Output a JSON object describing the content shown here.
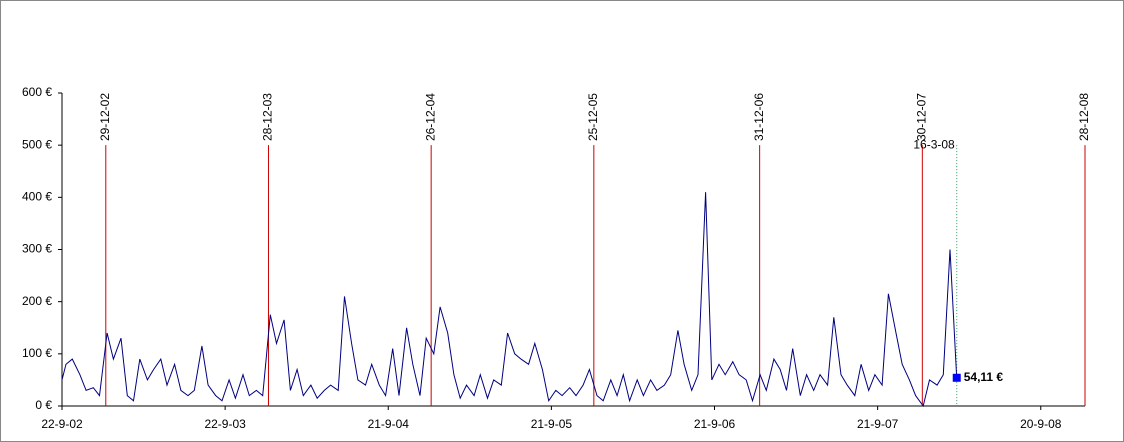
{
  "chart_data": {
    "type": "line",
    "color": "#000080",
    "x": [
      "2002-09-22",
      "2002-10-01",
      "2002-10-15",
      "2002-11-01",
      "2002-11-15",
      "2002-12-01",
      "2002-12-15",
      "2003-01-01",
      "2003-01-15",
      "2003-02-01",
      "2003-02-15",
      "2003-03-01",
      "2003-03-15",
      "2003-04-01",
      "2003-04-15",
      "2003-05-01",
      "2003-05-15",
      "2003-06-01",
      "2003-06-15",
      "2003-07-01",
      "2003-07-15",
      "2003-08-01",
      "2003-08-15",
      "2003-09-01",
      "2003-09-15",
      "2003-10-01",
      "2003-10-15",
      "2003-11-01",
      "2003-11-15",
      "2003-12-01",
      "2003-12-15",
      "2004-01-01",
      "2004-01-15",
      "2004-02-01",
      "2004-02-15",
      "2004-03-01",
      "2004-03-15",
      "2004-04-01",
      "2004-04-15",
      "2004-05-01",
      "2004-05-15",
      "2004-06-01",
      "2004-06-15",
      "2004-07-01",
      "2004-07-15",
      "2004-08-01",
      "2004-08-15",
      "2004-09-01",
      "2004-09-15",
      "2004-10-01",
      "2004-10-15",
      "2004-11-01",
      "2004-11-15",
      "2004-12-01",
      "2004-12-15",
      "2005-01-01",
      "2005-01-15",
      "2005-02-01",
      "2005-02-15",
      "2005-03-01",
      "2005-03-15",
      "2005-04-01",
      "2005-04-15",
      "2005-05-01",
      "2005-05-15",
      "2005-06-01",
      "2005-06-15",
      "2005-07-01",
      "2005-07-15",
      "2005-08-01",
      "2005-08-15",
      "2005-09-01",
      "2005-09-15",
      "2005-10-01",
      "2005-10-15",
      "2005-11-01",
      "2005-11-15",
      "2005-12-01",
      "2005-12-15",
      "2006-01-01",
      "2006-01-15",
      "2006-02-01",
      "2006-02-15",
      "2006-03-01",
      "2006-03-15",
      "2006-04-01",
      "2006-04-15",
      "2006-05-01",
      "2006-05-15",
      "2006-06-01",
      "2006-06-15",
      "2006-07-01",
      "2006-07-15",
      "2006-08-01",
      "2006-08-15",
      "2006-09-01",
      "2006-09-15",
      "2006-10-01",
      "2006-10-15",
      "2006-11-01",
      "2006-11-15",
      "2006-12-01",
      "2006-12-15",
      "2007-01-01",
      "2007-01-15",
      "2007-02-01",
      "2007-02-15",
      "2007-03-01",
      "2007-03-15",
      "2007-04-01",
      "2007-04-15",
      "2007-05-01",
      "2007-05-15",
      "2007-06-01",
      "2007-06-15",
      "2007-07-01",
      "2007-07-15",
      "2007-08-01",
      "2007-08-15",
      "2007-09-01",
      "2007-09-15",
      "2007-10-01",
      "2007-10-15",
      "2007-11-01",
      "2007-11-15",
      "2007-12-01",
      "2007-12-15",
      "2008-01-01",
      "2008-01-15",
      "2008-02-01",
      "2008-02-15",
      "2008-03-01",
      "2008-03-16"
    ],
    "values": [
      50,
      80,
      90,
      60,
      30,
      35,
      20,
      140,
      90,
      130,
      20,
      10,
      90,
      50,
      70,
      90,
      40,
      80,
      30,
      20,
      30,
      115,
      40,
      20,
      10,
      50,
      15,
      60,
      20,
      30,
      20,
      175,
      120,
      165,
      30,
      70,
      20,
      40,
      15,
      30,
      40,
      30,
      210,
      120,
      50,
      40,
      80,
      40,
      20,
      110,
      20,
      150,
      80,
      20,
      130,
      100,
      190,
      140,
      60,
      15,
      40,
      20,
      60,
      15,
      50,
      40,
      140,
      100,
      90,
      80,
      120,
      70,
      10,
      30,
      20,
      35,
      20,
      40,
      70,
      20,
      10,
      50,
      20,
      60,
      10,
      50,
      20,
      50,
      30,
      40,
      60,
      145,
      80,
      30,
      60,
      410,
      50,
      80,
      60,
      85,
      60,
      50,
      10,
      60,
      30,
      90,
      70,
      30,
      110,
      20,
      60,
      30,
      60,
      40,
      170,
      60,
      40,
      20,
      80,
      30,
      60,
      40,
      215,
      140,
      80,
      50,
      20,
      0,
      50,
      40,
      60,
      300,
      54.11
    ],
    "last_label": "54,11 €",
    "xlim": [
      "2002-09-22",
      "2008-12-28"
    ],
    "xticks": [
      {
        "value": "2002-09-22",
        "label": "22-9-02"
      },
      {
        "value": "2003-09-22",
        "label": "22-9-03"
      },
      {
        "value": "2004-09-21",
        "label": "21-9-04"
      },
      {
        "value": "2005-09-21",
        "label": "21-9-05"
      },
      {
        "value": "2006-09-21",
        "label": "21-9-06"
      },
      {
        "value": "2007-09-21",
        "label": "21-9-07"
      },
      {
        "value": "2008-09-20",
        "label": "20-9-08"
      }
    ],
    "ylim": [
      0,
      600
    ],
    "yticks": [
      {
        "value": 0,
        "label": "0 €"
      },
      {
        "value": 100,
        "label": "100 €"
      },
      {
        "value": 200,
        "label": "200 €"
      },
      {
        "value": 300,
        "label": "300 €"
      },
      {
        "value": 400,
        "label": "400 €"
      },
      {
        "value": 500,
        "label": "500 €"
      },
      {
        "value": 600,
        "label": "600 €"
      }
    ],
    "reference_top": 500,
    "reference_lines": [
      {
        "date": "2002-12-29",
        "label": "29-12-02",
        "color": "#cc0000"
      },
      {
        "date": "2003-12-28",
        "label": "28-12-03",
        "color": "#cc0000"
      },
      {
        "date": "2004-12-26",
        "label": "26-12-04",
        "color": "#cc0000"
      },
      {
        "date": "2005-12-25",
        "label": "25-12-05",
        "color": "#cc0000"
      },
      {
        "date": "2006-12-31",
        "label": "31-12-06",
        "color": "#cc0000"
      },
      {
        "date": "2007-12-30",
        "label": "30-12-07",
        "color": "#cc0000"
      },
      {
        "date": "2008-12-28",
        "label": "28-12-08",
        "color": "#cc0000"
      }
    ],
    "current_line": {
      "date": "2008-03-16",
      "label": "16-3-08",
      "color": "#339966"
    },
    "marker_color": "#0000ff"
  }
}
